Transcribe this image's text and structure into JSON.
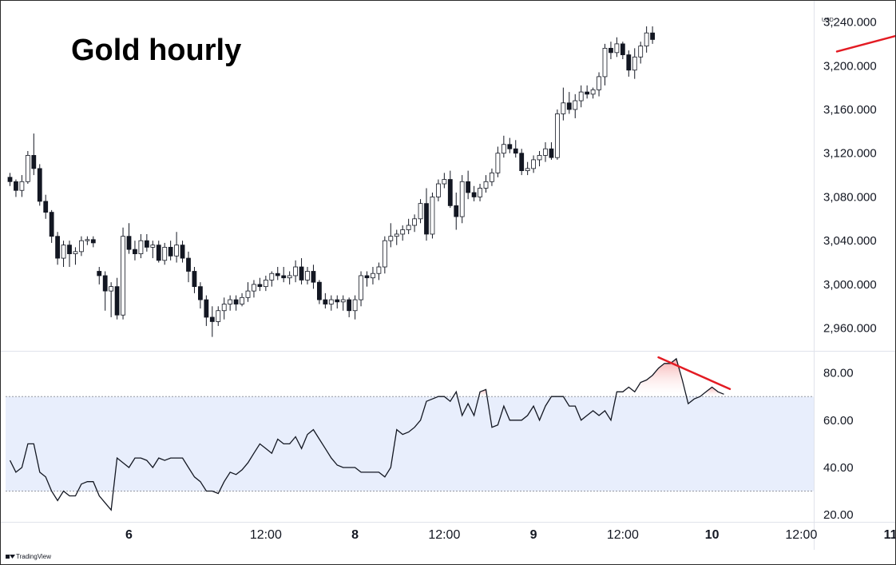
{
  "title": "Gold hourly",
  "brand": {
    "logo": "tradingview-logo",
    "name": "TradingView"
  },
  "chart_data": [
    {
      "type": "candlestick",
      "title": "Gold hourly",
      "currency_label": "USD",
      "ylim": [
        2940,
        3255
      ],
      "y_ticks": [
        "3,240.000",
        "3,200.000",
        "3,160.000",
        "3,120.000",
        "3,080.000",
        "3,040.000",
        "3,000.000",
        "2,960.000"
      ],
      "y_tick_values": [
        3240,
        3200,
        3160,
        3120,
        3080,
        3040,
        3000,
        2960
      ],
      "x_ticks": [
        {
          "label": "6",
          "bar": 20,
          "bold": true
        },
        {
          "label": "12:00",
          "bar": 43,
          "bold": false
        },
        {
          "label": "8",
          "bar": 58,
          "bold": true
        },
        {
          "label": "12:00",
          "bar": 73,
          "bold": false
        },
        {
          "label": "9",
          "bar": 88,
          "bold": true
        },
        {
          "label": "12:00",
          "bar": 103,
          "bold": false
        },
        {
          "label": "10",
          "bar": 118,
          "bold": true
        },
        {
          "label": "12:00",
          "bar": 133,
          "bold": false
        },
        {
          "label": "11",
          "bar": 148,
          "bold": true
        }
      ],
      "ohlc": [
        [
          3098,
          3102,
          3090,
          3094
        ],
        [
          3094,
          3096,
          3080,
          3086
        ],
        [
          3086,
          3100,
          3080,
          3094
        ],
        [
          3094,
          3122,
          3092,
          3118
        ],
        [
          3118,
          3138,
          3100,
          3106
        ],
        [
          3106,
          3110,
          3072,
          3076
        ],
        [
          3076,
          3082,
          3060,
          3066
        ],
        [
          3066,
          3068,
          3038,
          3044
        ],
        [
          3044,
          3048,
          3018,
          3024
        ],
        [
          3024,
          3040,
          3016,
          3036
        ],
        [
          3036,
          3040,
          3016,
          3028
        ],
        [
          3028,
          3034,
          3018,
          3030
        ],
        [
          3030,
          3044,
          3026,
          3040
        ],
        [
          3040,
          3044,
          3036,
          3041
        ],
        [
          3041,
          3044,
          3034,
          3038
        ],
        [
          3012,
          3016,
          3000,
          3008
        ],
        [
          3008,
          3012,
          2976,
          2994
        ],
        [
          2994,
          3002,
          2970,
          2998
        ],
        [
          2998,
          3006,
          2968,
          2972
        ],
        [
          2972,
          3052,
          2968,
          3044
        ],
        [
          3044,
          3056,
          3028,
          3032
        ],
        [
          3032,
          3040,
          3022,
          3028
        ],
        [
          3028,
          3046,
          3024,
          3040
        ],
        [
          3040,
          3046,
          3030,
          3034
        ],
        [
          3034,
          3040,
          3024,
          3036
        ],
        [
          3036,
          3040,
          3020,
          3022
        ],
        [
          3022,
          3038,
          3018,
          3034
        ],
        [
          3034,
          3040,
          3022,
          3026
        ],
        [
          3026,
          3048,
          3020,
          3036
        ],
        [
          3036,
          3040,
          3020,
          3024
        ],
        [
          3024,
          3030,
          3002,
          3012
        ],
        [
          3012,
          3016,
          2992,
          2998
        ],
        [
          2998,
          3002,
          2978,
          2986
        ],
        [
          2986,
          2990,
          2962,
          2970
        ],
        [
          2970,
          2980,
          2952,
          2966
        ],
        [
          2966,
          2980,
          2962,
          2976
        ],
        [
          2976,
          2988,
          2968,
          2982
        ],
        [
          2982,
          2990,
          2976,
          2986
        ],
        [
          2986,
          2990,
          2976,
          2982
        ],
        [
          2982,
          2992,
          2980,
          2988
        ],
        [
          2988,
          3002,
          2984,
          2994
        ],
        [
          2994,
          3004,
          2988,
          3000
        ],
        [
          3000,
          3006,
          2994,
          2998
        ],
        [
          2998,
          3008,
          2994,
          3004
        ],
        [
          3004,
          3012,
          2998,
          3010
        ],
        [
          3010,
          3016,
          3004,
          3008
        ],
        [
          3008,
          3016,
          3002,
          3006
        ],
        [
          3006,
          3012,
          3000,
          3008
        ],
        [
          3008,
          3022,
          3002,
          3016
        ],
        [
          3016,
          3024,
          3000,
          3004
        ],
        [
          3004,
          3016,
          3000,
          3012
        ],
        [
          3012,
          3018,
          2996,
          3002
        ],
        [
          3002,
          3004,
          2982,
          2986
        ],
        [
          2986,
          2992,
          2978,
          2982
        ],
        [
          2982,
          2990,
          2976,
          2986
        ],
        [
          2986,
          2990,
          2978,
          2984
        ],
        [
          2984,
          2990,
          2976,
          2986
        ],
        [
          2986,
          2988,
          2970,
          2976
        ],
        [
          2976,
          2990,
          2968,
          2986
        ],
        [
          2986,
          3012,
          2980,
          3008
        ],
        [
          3008,
          3012,
          2998,
          3006
        ],
        [
          3006,
          3016,
          3000,
          3010
        ],
        [
          3010,
          3020,
          3004,
          3016
        ],
        [
          3016,
          3044,
          3010,
          3040
        ],
        [
          3040,
          3056,
          3034,
          3044
        ],
        [
          3044,
          3050,
          3036,
          3046
        ],
        [
          3046,
          3054,
          3040,
          3050
        ],
        [
          3050,
          3060,
          3046,
          3054
        ],
        [
          3054,
          3064,
          3048,
          3060
        ],
        [
          3060,
          3078,
          3056,
          3074
        ],
        [
          3074,
          3088,
          3040,
          3046
        ],
        [
          3046,
          3084,
          3042,
          3080
        ],
        [
          3080,
          3096,
          3076,
          3092
        ],
        [
          3092,
          3102,
          3088,
          3096
        ],
        [
          3096,
          3104,
          3070,
          3072
        ],
        [
          3072,
          3084,
          3050,
          3062
        ],
        [
          3062,
          3100,
          3056,
          3094
        ],
        [
          3094,
          3104,
          3078,
          3084
        ],
        [
          3084,
          3090,
          3076,
          3080
        ],
        [
          3080,
          3092,
          3076,
          3088
        ],
        [
          3088,
          3100,
          3084,
          3094
        ],
        [
          3094,
          3106,
          3090,
          3102
        ],
        [
          3102,
          3126,
          3098,
          3120
        ],
        [
          3120,
          3136,
          3116,
          3128
        ],
        [
          3128,
          3134,
          3120,
          3124
        ],
        [
          3124,
          3132,
          3116,
          3120
        ],
        [
          3120,
          3124,
          3100,
          3104
        ],
        [
          3104,
          3112,
          3100,
          3106
        ],
        [
          3106,
          3118,
          3102,
          3114
        ],
        [
          3114,
          3122,
          3108,
          3118
        ],
        [
          3118,
          3130,
          3112,
          3124
        ],
        [
          3124,
          3130,
          3114,
          3116
        ],
        [
          3116,
          3160,
          3114,
          3156
        ],
        [
          3156,
          3180,
          3150,
          3166
        ],
        [
          3166,
          3176,
          3156,
          3160
        ],
        [
          3160,
          3174,
          3152,
          3168
        ],
        [
          3168,
          3182,
          3162,
          3176
        ],
        [
          3176,
          3182,
          3170,
          3174
        ],
        [
          3174,
          3180,
          3170,
          3178
        ],
        [
          3178,
          3194,
          3172,
          3190
        ],
        [
          3190,
          3220,
          3182,
          3216
        ],
        [
          3216,
          3222,
          3206,
          3212
        ],
        [
          3212,
          3226,
          3208,
          3220
        ],
        [
          3220,
          3222,
          3206,
          3210
        ],
        [
          3210,
          3214,
          3190,
          3196
        ],
        [
          3196,
          3216,
          3188,
          3208
        ],
        [
          3208,
          3222,
          3202,
          3218
        ],
        [
          3218,
          3236,
          3212,
          3230
        ],
        [
          3230,
          3236,
          3220,
          3224
        ]
      ],
      "annotations": [
        {
          "type": "trendline",
          "color": "#e31b23",
          "from": {
            "bar": 139,
            "price": 3213
          },
          "to": {
            "bar": 157,
            "price": 3239
          }
        }
      ]
    },
    {
      "type": "line",
      "indicator": "RSI",
      "ylim": [
        17,
        88
      ],
      "y_ticks": [
        "80.00",
        "60.00",
        "40.00",
        "20.00"
      ],
      "y_tick_values": [
        80,
        60,
        40,
        20
      ],
      "band": {
        "upper": 70,
        "lower": 30,
        "color": "#e8eefc"
      },
      "values": [
        43,
        38,
        40,
        50,
        50,
        38,
        36,
        30,
        26,
        30,
        28,
        28,
        33,
        34,
        34,
        28,
        25,
        22,
        44,
        42,
        40,
        44,
        44,
        43,
        40,
        44,
        43,
        44,
        44,
        44,
        40,
        36,
        34,
        30,
        30,
        29,
        34,
        38,
        37,
        39,
        42,
        46,
        50,
        48,
        46,
        52,
        50,
        50,
        53,
        48,
        54,
        56,
        52,
        48,
        44,
        41,
        40,
        40,
        40,
        38,
        38,
        38,
        38,
        36,
        40,
        56,
        54,
        55,
        57,
        60,
        68,
        69,
        70,
        70,
        68,
        72,
        62,
        67,
        62,
        72,
        73,
        57,
        58,
        66,
        60,
        60,
        60,
        62,
        66,
        60,
        66,
        70,
        70,
        70,
        66,
        66,
        60,
        62,
        64,
        62,
        64,
        60,
        72,
        72,
        74,
        72,
        76,
        77,
        79,
        82,
        84,
        84,
        86,
        77,
        67,
        69,
        70,
        72,
        74,
        72,
        71
      ],
      "annotations": [
        {
          "type": "trendline",
          "color": "#e31b23",
          "from": {
            "index": 109,
            "value": 86.6
          },
          "to": {
            "index": 121,
            "value": 73.2
          }
        }
      ]
    }
  ]
}
